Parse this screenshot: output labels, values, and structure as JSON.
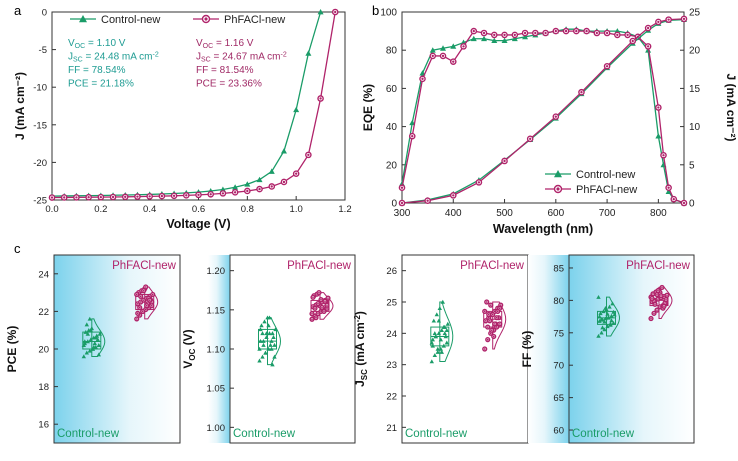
{
  "colors": {
    "control": "#1a9c68",
    "ph": "#b0236a",
    "control_text": "#1f9c93",
    "ph_text": "#a02a66",
    "cyan": "#7fd3ea"
  },
  "panel_labels": {
    "a": "a",
    "b": "b",
    "c": "c"
  },
  "chart_data": [
    {
      "id": "a",
      "type": "line",
      "xlabel": "Voltage (V)",
      "ylabel": "J (mA cm⁻²)",
      "xlim": [
        0.0,
        1.2
      ],
      "ylim": [
        -25,
        0
      ],
      "xticks": [
        "0.0",
        "0.2",
        "0.4",
        "0.6",
        "0.8",
        "1.0",
        "1.2"
      ],
      "yticks": [
        "0",
        "-5",
        "-10",
        "-15",
        "-20",
        "-25"
      ],
      "legend": "top",
      "legend_labels": [
        "Control-new",
        "PhFACl-new"
      ],
      "annotations": {
        "control": [
          "Vₒₒ = 1.10 V",
          "Jₛₒ = 24.48 mA cm⁻²",
          "FF = 78.54%",
          "PCE = 21.18%"
        ],
        "ph": [
          "Vₒₒ = 1.16 V",
          "Jₛₒ = 24.67 mA cm⁻²",
          "FF = 81.54%",
          "PCE = 23.36%"
        ]
      },
      "annot_display": {
        "control": [
          [
            "V",
            "OC",
            " = 1.10 V"
          ],
          [
            "J",
            "SC",
            " = 24.48 mA cm",
            "-2"
          ],
          [
            "FF = 78.54%"
          ],
          [
            "PCE = 21.18%"
          ]
        ],
        "ph": [
          [
            "V",
            "OC",
            " = 1.16 V"
          ],
          [
            "J",
            "SC",
            " = 24.67 mA cm",
            "-2"
          ],
          [
            "FF = 81.54%"
          ],
          [
            "PCE = 23.36%"
          ]
        ]
      },
      "series": [
        {
          "name": "Control-new",
          "x": [
            0,
            0.05,
            0.1,
            0.15,
            0.2,
            0.25,
            0.3,
            0.35,
            0.4,
            0.45,
            0.5,
            0.55,
            0.6,
            0.65,
            0.7,
            0.75,
            0.8,
            0.85,
            0.9,
            0.95,
            1.0,
            1.05,
            1.1
          ],
          "y": [
            -24.48,
            -24.46,
            -24.44,
            -24.42,
            -24.4,
            -24.37,
            -24.34,
            -24.3,
            -24.26,
            -24.2,
            -24.14,
            -24.05,
            -23.95,
            -23.8,
            -23.6,
            -23.3,
            -22.9,
            -22.3,
            -21.2,
            -18.5,
            -13.0,
            -5.5,
            0
          ]
        },
        {
          "name": "PhFACl-new",
          "x": [
            0,
            0.05,
            0.1,
            0.15,
            0.2,
            0.25,
            0.3,
            0.35,
            0.4,
            0.45,
            0.5,
            0.55,
            0.6,
            0.65,
            0.7,
            0.75,
            0.8,
            0.85,
            0.9,
            0.95,
            1.0,
            1.05,
            1.1,
            1.16
          ],
          "y": [
            -24.67,
            -24.66,
            -24.65,
            -24.63,
            -24.62,
            -24.6,
            -24.58,
            -24.55,
            -24.52,
            -24.48,
            -24.44,
            -24.38,
            -24.32,
            -24.24,
            -24.12,
            -23.98,
            -23.8,
            -23.55,
            -23.2,
            -22.6,
            -21.5,
            -19.0,
            -11.5,
            0
          ]
        }
      ]
    },
    {
      "id": "b",
      "type": "line",
      "xlabel": "Wavelength (nm)",
      "ylabel": "EQE (%)",
      "y2label": "J (mA cm⁻²)",
      "xlim": [
        300,
        850
      ],
      "ylim": [
        0,
        100
      ],
      "y2lim": [
        0,
        25
      ],
      "xticks": [
        "300",
        "400",
        "500",
        "600",
        "700",
        "800"
      ],
      "yticks": [
        "0",
        "20",
        "40",
        "60",
        "80",
        "100"
      ],
      "y2ticks": [
        "0",
        "5",
        "10",
        "15",
        "20",
        "25"
      ],
      "legend": "bottom-right",
      "legend_labels": [
        "Control-new",
        "PhFACl-new"
      ],
      "series": [
        {
          "name": "Control-new",
          "x": [
            300,
            320,
            340,
            360,
            380,
            400,
            420,
            440,
            460,
            480,
            500,
            520,
            540,
            560,
            580,
            600,
            620,
            640,
            660,
            680,
            700,
            720,
            740,
            760,
            780,
            800,
            810,
            820,
            830,
            850
          ],
          "y": [
            10,
            42,
            68,
            80,
            81,
            82,
            84,
            86,
            86,
            85,
            85,
            86,
            87,
            88,
            89,
            90,
            91,
            91,
            90,
            90,
            90,
            90,
            89,
            87,
            80,
            35,
            20,
            6,
            2,
            0
          ]
        },
        {
          "name": "PhFACl-new",
          "x": [
            300,
            320,
            340,
            360,
            380,
            400,
            420,
            440,
            460,
            480,
            500,
            520,
            540,
            560,
            580,
            600,
            620,
            640,
            660,
            680,
            700,
            720,
            740,
            760,
            780,
            800,
            810,
            820,
            830,
            850
          ],
          "y": [
            8,
            35,
            65,
            77,
            77,
            74,
            82,
            90,
            89,
            88,
            88,
            88,
            89,
            89,
            89,
            90,
            90,
            90,
            90,
            89,
            89,
            88,
            88,
            87,
            82,
            50,
            25,
            8,
            2,
            0
          ]
        },
        {
          "name": "Control-new integrated",
          "axis": "y2",
          "x": [
            300,
            350,
            400,
            450,
            500,
            550,
            600,
            650,
            700,
            750,
            780,
            800,
            820,
            850
          ],
          "y": [
            0,
            0.4,
            1.2,
            3.0,
            5.6,
            8.3,
            11.1,
            14.3,
            17.7,
            20.9,
            22.6,
            23.5,
            23.9,
            24.0
          ]
        },
        {
          "name": "PhFACl-new integrated",
          "axis": "y2",
          "x": [
            300,
            350,
            400,
            450,
            500,
            550,
            600,
            650,
            700,
            750,
            780,
            800,
            820,
            850
          ],
          "y": [
            0,
            0.3,
            1.0,
            2.7,
            5.5,
            8.4,
            11.3,
            14.5,
            17.9,
            21.2,
            22.9,
            23.7,
            24.0,
            24.1
          ]
        }
      ]
    },
    {
      "id": "c1",
      "type": "scatter",
      "ylabel": "PCE (%)",
      "ylim": [
        15,
        25
      ],
      "yticks": [
        "16",
        "18",
        "20",
        "22",
        "24"
      ],
      "tick_values": [
        16,
        18,
        20,
        22,
        24
      ],
      "groups": [
        {
          "name": "Control-new",
          "mean": 20.4,
          "q1": 20.0,
          "q3": 20.9,
          "values": [
            19.6,
            19.8,
            19.9,
            20.0,
            20.1,
            20.2,
            20.3,
            20.4,
            20.5,
            20.6,
            20.7,
            20.8,
            20.9,
            21.0,
            21.1,
            20.3,
            20.5,
            20.2,
            21.3,
            21.6,
            20.0,
            20.6,
            19.7,
            20.4,
            20.8,
            21.0,
            20.1,
            20.7
          ]
        },
        {
          "name": "PhFACl-new",
          "mean": 22.5,
          "q1": 22.1,
          "q3": 22.9,
          "values": [
            21.6,
            21.8,
            22.0,
            22.1,
            22.2,
            22.3,
            22.4,
            22.5,
            22.6,
            22.7,
            22.8,
            22.9,
            23.0,
            23.1,
            23.2,
            22.4,
            22.6,
            22.9,
            22.2,
            22.0,
            23.3,
            22.7,
            22.5,
            21.9,
            22.8,
            23.1,
            22.3,
            22.6
          ]
        }
      ]
    },
    {
      "id": "c2",
      "type": "scatter",
      "ylabel": "V_OC (V)",
      "ylim": [
        0.98,
        1.22
      ],
      "yticks": [
        "1.00",
        "1.05",
        "1.10",
        "1.15",
        "1.20"
      ],
      "tick_values": [
        1.0,
        1.05,
        1.1,
        1.15,
        1.2
      ],
      "groups": [
        {
          "name": "Control-new",
          "mean": 1.11,
          "q1": 1.1,
          "q3": 1.125,
          "values": [
            1.085,
            1.09,
            1.095,
            1.1,
            1.1,
            1.105,
            1.11,
            1.11,
            1.115,
            1.12,
            1.12,
            1.125,
            1.13,
            1.135,
            1.14,
            1.105,
            1.115,
            1.1,
            1.12,
            1.095,
            1.13,
            1.11,
            1.09,
            1.125,
            1.105,
            1.12,
            1.14,
            1.08
          ]
        },
        {
          "name": "PhFACl-new",
          "mean": 1.155,
          "q1": 1.148,
          "q3": 1.162,
          "values": [
            1.138,
            1.142,
            1.145,
            1.148,
            1.15,
            1.152,
            1.154,
            1.156,
            1.158,
            1.16,
            1.162,
            1.165,
            1.168,
            1.17,
            1.155,
            1.15,
            1.16,
            1.145,
            1.152,
            1.158,
            1.163,
            1.148,
            1.156,
            1.166,
            1.14,
            1.172,
            1.153,
            1.161
          ]
        }
      ]
    },
    {
      "id": "c3",
      "type": "scatter",
      "ylabel": "J_SC (mA cm⁻²)",
      "ylim": [
        20.5,
        26.5
      ],
      "yticks": [
        "21",
        "22",
        "23",
        "24",
        "25",
        "26"
      ],
      "tick_values": [
        21,
        22,
        23,
        24,
        25,
        26
      ],
      "groups": [
        {
          "name": "Control-new",
          "mean": 23.9,
          "q1": 23.6,
          "q3": 24.2,
          "values": [
            23.1,
            23.3,
            23.4,
            23.5,
            23.6,
            23.7,
            23.8,
            23.9,
            24.0,
            24.1,
            24.2,
            24.3,
            24.4,
            24.6,
            24.8,
            25.0,
            23.9,
            23.7,
            24.0,
            23.5,
            23.8,
            24.2,
            24.1,
            23.6,
            23.9,
            24.4,
            23.4,
            24.0
          ]
        },
        {
          "name": "PhFACl-new",
          "mean": 24.45,
          "q1": 24.2,
          "q3": 24.7,
          "values": [
            23.5,
            23.8,
            24.0,
            24.1,
            24.2,
            24.3,
            24.4,
            24.5,
            24.6,
            24.7,
            24.8,
            24.9,
            25.0,
            24.4,
            24.6,
            24.3,
            24.5,
            24.7,
            24.2,
            24.9,
            23.9,
            24.5,
            24.8,
            24.4,
            24.6,
            24.1,
            24.3,
            24.7
          ]
        }
      ]
    },
    {
      "id": "c4",
      "type": "scatter",
      "ylabel": "FF (%)",
      "ylim": [
        58,
        87
      ],
      "yticks": [
        "60",
        "65",
        "70",
        "75",
        "80",
        "85"
      ],
      "tick_values": [
        60,
        65,
        70,
        75,
        80,
        85
      ],
      "groups": [
        {
          "name": "Control-new",
          "mean": 77.3,
          "q1": 76.3,
          "q3": 78.3,
          "values": [
            74.5,
            75.0,
            75.5,
            76.0,
            76.2,
            76.5,
            76.8,
            77.0,
            77.2,
            77.4,
            77.6,
            77.8,
            78.0,
            78.3,
            78.6,
            79.0,
            79.5,
            80.5,
            77.1,
            76.7,
            77.9,
            76.4,
            78.2,
            77.5,
            75.8,
            78.8,
            77.3,
            76.9
          ]
        },
        {
          "name": "PhFACl-new",
          "mean": 80.0,
          "q1": 79.2,
          "q3": 80.8,
          "values": [
            77.2,
            78.0,
            78.5,
            79.0,
            79.2,
            79.5,
            79.8,
            80.0,
            80.2,
            80.4,
            80.6,
            80.8,
            81.0,
            81.3,
            81.6,
            82.0,
            79.6,
            80.5,
            79.9,
            80.9,
            81.2,
            78.8,
            80.1,
            80.3,
            79.4,
            81.5,
            80.7,
            79.1
          ]
        }
      ]
    }
  ],
  "panel_c_text": {
    "control": "Control-new",
    "ph": "PhFACl-new",
    "ylabels": [
      "PCE (%)",
      "V",
      "J",
      "FF (%)"
    ]
  }
}
